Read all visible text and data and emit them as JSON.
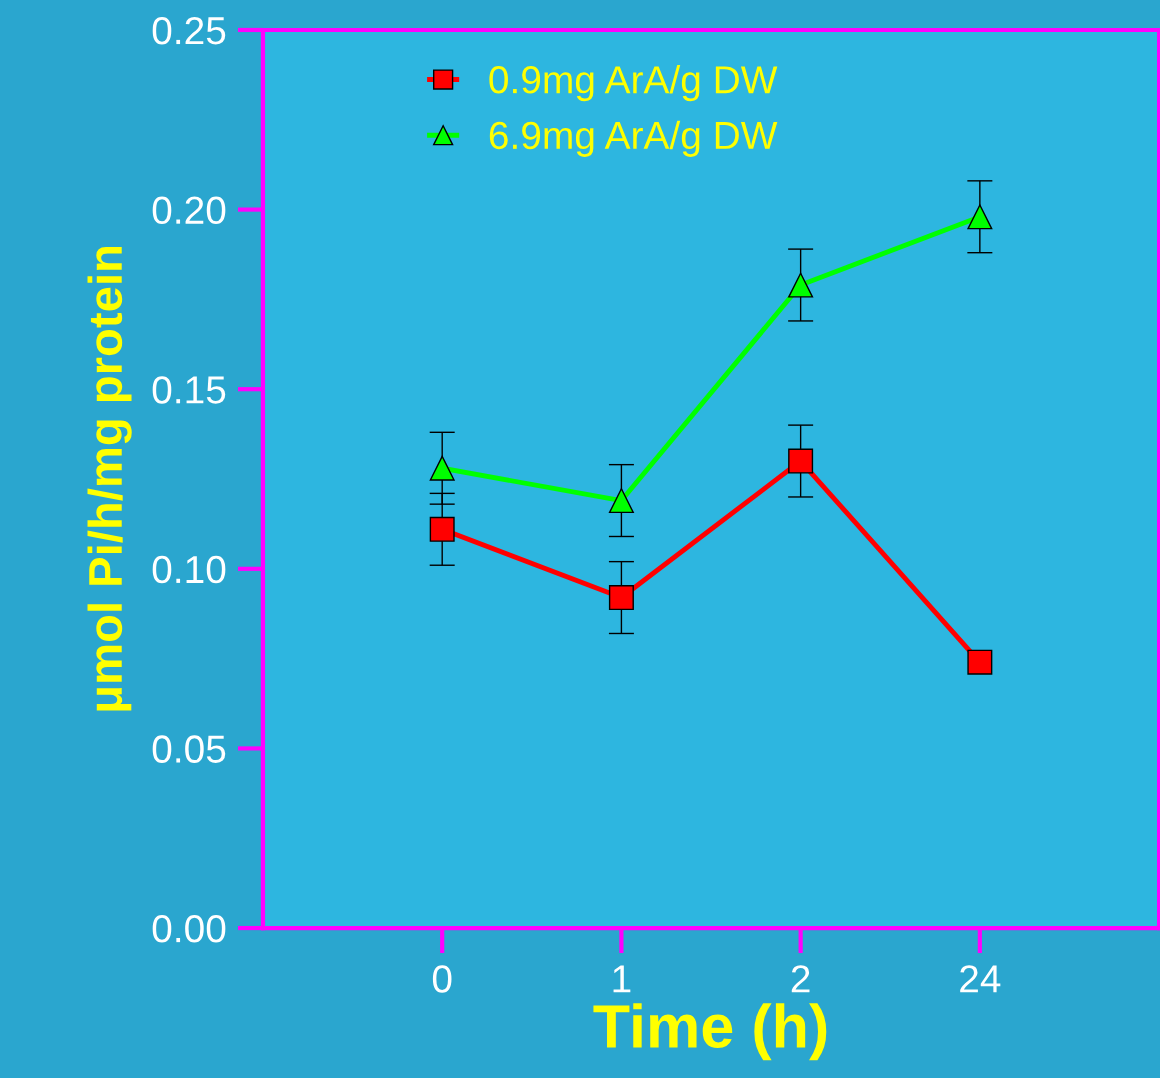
{
  "chart_data": {
    "type": "line",
    "xlabel": "Time (h)",
    "ylabel": "μmol Pi/h/mg protein",
    "categories": [
      "0",
      "1",
      "2",
      "24"
    ],
    "series": [
      {
        "name": "0.9mg ArA/g DW",
        "color": "#ff0000",
        "marker": "square",
        "values": [
          0.111,
          0.092,
          0.13,
          0.074
        ],
        "errors": [
          0.01,
          0.01,
          0.01,
          null
        ]
      },
      {
        "name": "6.9mg ArA/g DW",
        "color": "#00ff00",
        "marker": "triangle",
        "values": [
          0.128,
          0.119,
          0.179,
          0.198
        ],
        "errors": [
          0.01,
          0.01,
          0.01,
          0.01
        ]
      }
    ],
    "ylim": [
      0,
      0.25
    ],
    "yticks": [
      {
        "value": 0,
        "label": "0.00"
      },
      {
        "value": 0.05,
        "label": "0.05"
      },
      {
        "value": 0.1,
        "label": "0.10"
      },
      {
        "value": 0.15,
        "label": "0.15"
      },
      {
        "value": 0.2,
        "label": "0.20"
      },
      {
        "value": 0.25,
        "label": "0.25"
      }
    ],
    "grid": false,
    "legend": "top",
    "line_style": "solid"
  }
}
